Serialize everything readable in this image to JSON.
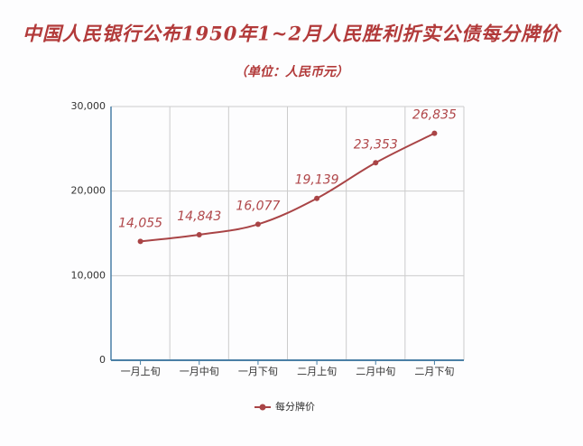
{
  "chart_data": {
    "type": "line",
    "title": "中国人民银行公布1950年1~2月人民胜利折实公债每分牌价",
    "subtitle": "（单位：人民币元）",
    "categories": [
      "一月上旬",
      "一月中旬",
      "一月下旬",
      "二月上旬",
      "二月中旬",
      "二月下旬"
    ],
    "series": [
      {
        "name": "每分牌价",
        "color": "#a94446",
        "values": [
          14055,
          14843,
          16077,
          19139,
          23353,
          26835
        ],
        "value_labels": [
          "14,055",
          "14,843",
          "16,077",
          "19,139",
          "23,353",
          "26,835"
        ]
      }
    ],
    "ylim": [
      0,
      30000
    ],
    "yticks": [
      0,
      {
        "value": 10000,
        "label": "10,000"
      },
      {
        "value": 20000,
        "label": "20,000"
      },
      {
        "value": 30000,
        "label": "30,000"
      }
    ],
    "grid": true
  }
}
